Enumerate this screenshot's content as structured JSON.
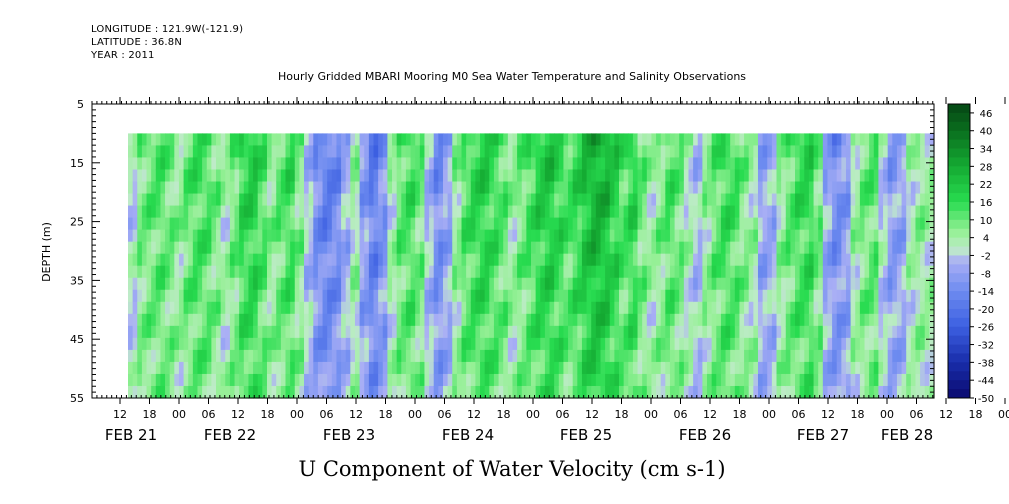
{
  "header": {
    "longitude": "LONGITUDE : 121.9W(-121.9)",
    "latitude": "LATITUDE : 36.8N",
    "year": "YEAR : 2011"
  },
  "chart_data": {
    "type": "heatmap",
    "title": "Hourly Gridded MBARI Mooring M0 Sea Water Temperature and Salinity Observations",
    "xlabel": "U Component of Water Velocity (cm s-1)",
    "ylabel": "DEPTH (m)",
    "y_ticks": [
      5,
      15,
      25,
      35,
      45,
      55
    ],
    "ylim": [
      55,
      5
    ],
    "y_reversed": true,
    "data_depth_range": [
      10,
      55
    ],
    "x_hour_ticks": [
      "12",
      "18",
      "00",
      "06",
      "12",
      "18",
      "00",
      "06",
      "12",
      "18",
      "00",
      "06",
      "12",
      "18",
      "00",
      "06",
      "12",
      "18",
      "00",
      "06",
      "12",
      "18",
      "00",
      "06",
      "12",
      "18",
      "00",
      "06",
      "12",
      "18",
      "00",
      "06"
    ],
    "x_date_labels": [
      "FEB 21",
      "FEB 22",
      "FEB 23",
      "FEB 24",
      "FEB 25",
      "FEB 26",
      "FEB 27",
      "FEB 28"
    ],
    "colorbar": {
      "labels": [
        "46",
        "40",
        "34",
        "28",
        "22",
        "16",
        "10",
        "4",
        "-2",
        "-8",
        "-14",
        "-20",
        "-26",
        "-32",
        "-38",
        "-44",
        "-50"
      ],
      "range": [
        -50,
        49
      ],
      "step": 3
    },
    "velocity_profile_by_hour": [
      -1,
      9,
      11,
      13,
      10,
      6,
      12,
      15,
      14,
      9,
      3,
      10,
      18,
      20,
      14,
      7,
      12,
      16,
      8,
      -4,
      -14,
      -18,
      -15,
      -6,
      4,
      -10,
      -18,
      -12,
      3,
      12,
      15,
      10,
      -5,
      -14,
      -8,
      6,
      14,
      18,
      20,
      16,
      12,
      5,
      10,
      15,
      20,
      22,
      18,
      14,
      18,
      24,
      28,
      26,
      20,
      14,
      18,
      10,
      4,
      8,
      14,
      10,
      2,
      -4,
      6,
      12,
      16,
      14,
      8,
      4,
      -8,
      -6,
      6,
      12,
      16,
      18,
      10,
      -8,
      -14,
      -10,
      4,
      10,
      12,
      -2,
      -10,
      -8,
      2,
      6,
      4
    ]
  }
}
